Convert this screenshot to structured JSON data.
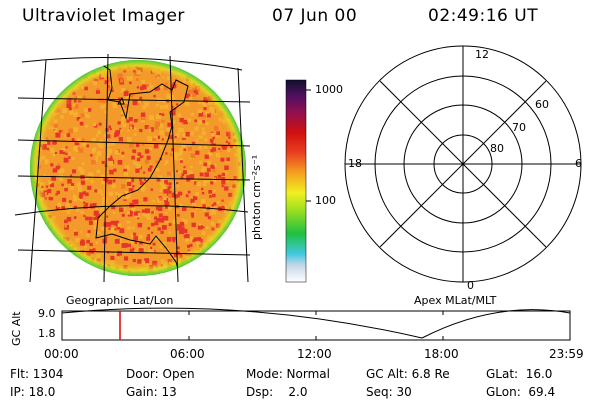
{
  "header": {
    "title": "Ultraviolet Imager",
    "date": "07 Jun 00",
    "time": "02:49:16 UT"
  },
  "colorbar": {
    "labels": [
      "1000",
      "100"
    ],
    "unit": "photon cm⁻²s⁻¹"
  },
  "maps": {
    "left_caption": "Geographic Lat/Lon",
    "right_caption": "Apex MLat/MLT"
  },
  "polar": {
    "mlt_labels": {
      "top": "12",
      "bottom": "0",
      "left": "18",
      "right": "6"
    },
    "lat_labels": [
      "60",
      "70",
      "80"
    ]
  },
  "altitude_plot": {
    "ylabel": "GC Alt",
    "ymax_label": "9.0",
    "ymin_label": "1.8",
    "x_ticks": [
      "00:00",
      "06:00",
      "12:00",
      "18:00",
      "23:59"
    ],
    "current_marker_time": "02:49"
  },
  "info": {
    "flt": "Flt: 1304",
    "ip": "IP: 18.0",
    "door": "Door: Open",
    "gain": "Gain: 13",
    "mode": "Mode: Normal",
    "dsp": "Dsp:    2.0",
    "gcalt": "GC Alt: 6.8 Re",
    "seq": "Seq: 30",
    "glat": "GLat:  16.0",
    "glon": "GLon:  69.4"
  },
  "colors": {
    "marker": "#e00000",
    "disk_main": "#f39a2a",
    "disk_hot": "#e8352b"
  }
}
